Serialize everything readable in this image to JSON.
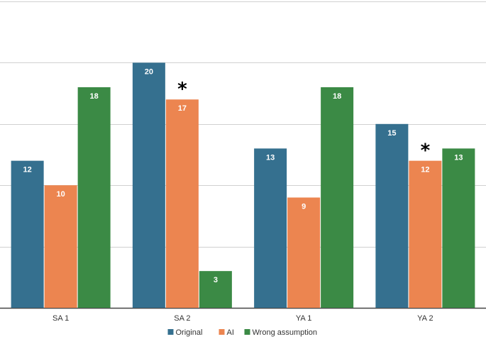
{
  "chart_data": {
    "type": "bar",
    "categories": [
      "SA 1",
      "SA 2",
      "YA 1",
      "YA 2"
    ],
    "series": [
      {
        "name": "Original",
        "values": [
          12,
          20,
          13,
          15
        ]
      },
      {
        "name": "AI",
        "values": [
          10,
          17,
          9,
          12
        ]
      },
      {
        "name": "Wrong assumption",
        "values": [
          18,
          3,
          18,
          13
        ]
      }
    ],
    "ylim": [
      0,
      25
    ],
    "grid": true,
    "legend_position": "bottom",
    "annotations": [
      {
        "text": "*",
        "category": "SA 2",
        "series": "AI"
      },
      {
        "text": "*",
        "category": "YA 2",
        "series": "AI"
      }
    ],
    "colors": {
      "Original": "#35708f",
      "AI": "#ec8550",
      "Wrong assumption": "#3b8a45"
    }
  }
}
